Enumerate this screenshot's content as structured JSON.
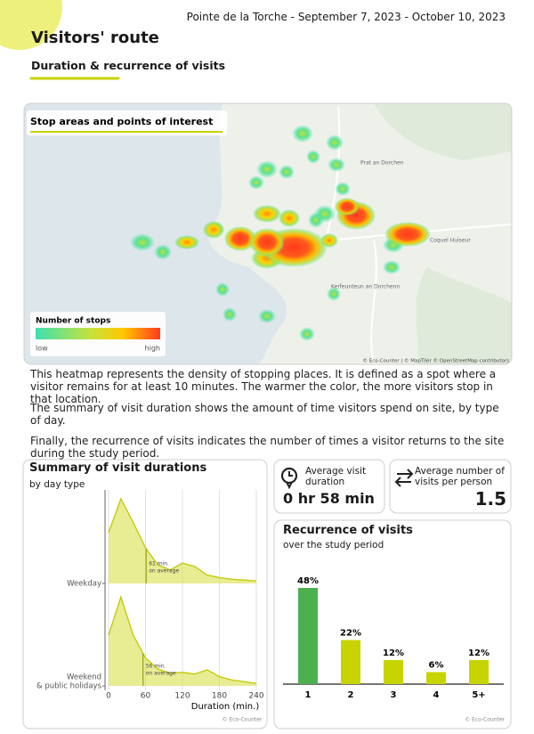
{
  "header": {
    "period": "Pointe de la Torche - September 7, 2023 - October 10, 2023",
    "title": "Visitors' route",
    "subtitle": "Duration & recurrence of visits"
  },
  "map": {
    "title": "Stop areas and points of interest",
    "legend_title": "Number of stops",
    "legend_low": "low",
    "legend_high": "high",
    "places": [
      "Prat an Dorchen",
      "Coquel Huiseur",
      "Kerfeunteun an Dorchenn"
    ],
    "attribution": "© Eco-Counter | © MapTiler © OpenStreetMap contributors"
  },
  "paragraphs": [
    "This heatmap represents the density of stopping places. It is defined as a spot where a visitor remains for at least 10 minutes. The warmer the color, the more visitors stop in that location.",
    "The summary of visit duration shows the amount of time visitors spend on site, by type of day.",
    "Finally, the recurrence of visits indicates the number of times a visitor returns to the site during the study period."
  ],
  "duration_chart": {
    "type": "ridgeline",
    "title": "Summary of visit durations",
    "subtitle": "by day type",
    "x": [
      0,
      20,
      40,
      60,
      80,
      100,
      120,
      140,
      160,
      180,
      200,
      220,
      240
    ],
    "series": [
      {
        "name": [
          "Weekday"
        ],
        "color": "#d6dc3a",
        "values": [
          0.6,
          1.0,
          0.72,
          0.42,
          0.22,
          0.16,
          0.24,
          0.2,
          0.1,
          0.07,
          0.05,
          0.04,
          0.03
        ],
        "mean": 61,
        "mean_label": [
          "61 min.",
          "on average"
        ]
      },
      {
        "name": [
          "Weekend",
          "& public holidays"
        ],
        "color": "#d6dc3a",
        "values": [
          0.6,
          1.05,
          0.6,
          0.33,
          0.2,
          0.15,
          0.16,
          0.14,
          0.19,
          0.11,
          0.07,
          0.05,
          0.03
        ],
        "mean": 56,
        "mean_label": [
          "56 min.",
          "on average"
        ]
      }
    ],
    "xlim": [
      0,
      240
    ],
    "xticks": [
      0,
      60,
      120,
      180,
      240
    ],
    "xlabel": "Duration (min.)",
    "credit": "© Eco-Counter"
  },
  "average_duration": {
    "label": "Average visit duration",
    "value": "0 hr 58 min"
  },
  "average_visits": {
    "label": "Average number of visits per person",
    "value": 1.5
  },
  "recurrence_chart": {
    "type": "bar",
    "title": "Recurrence of visits",
    "subtitle": "over the study period",
    "categories": [
      "1",
      "2",
      "3",
      "4",
      "5+"
    ],
    "values": [
      48,
      22,
      12,
      6,
      12
    ],
    "value_labels": [
      "48%",
      "22%",
      "12%",
      "6%",
      "12%"
    ],
    "colors": [
      "#4cb050",
      "#c8d400",
      "#c8d400",
      "#c8d400",
      "#c8d400"
    ],
    "credit": "© Eco-Counter"
  }
}
